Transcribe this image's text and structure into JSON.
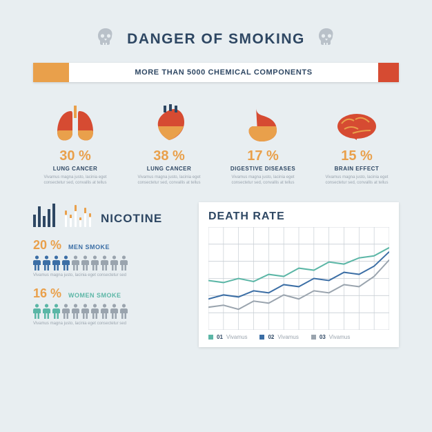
{
  "colors": {
    "bg": "#e8eef1",
    "title": "#2e4763",
    "skull": "#b9c1c9",
    "filter": "#e9a04b",
    "cig_tip": "#d64b32",
    "cig_text": "#2e4763",
    "accent_orange": "#e9a04b",
    "muted": "#9aa4ae",
    "organ_red": "#d64b32",
    "organ_yellow": "#e9a04b",
    "men": "#3b6ea5",
    "women": "#5bb6a6",
    "grid": "#c8ced4",
    "chart_bg": "#ffffff",
    "line1": "#5bb6a6",
    "line2": "#3b6ea5",
    "line3": "#9aa4ae"
  },
  "title": "DANGER OF SMOKING",
  "cig_text": "MORE THAN 5000 CHEMICAL COMPONENTS",
  "organs": [
    {
      "pct": "30 %",
      "label": "LUNG CANCER",
      "desc": "Vivamus magna justo, lacinia eget consectetur sed, convallis at tellus"
    },
    {
      "pct": "38 %",
      "label": "LUNG CANCER",
      "desc": "Vivamus magna justo, lacinia eget consectetur sed, convallis at tellus"
    },
    {
      "pct": "17 %",
      "label": "DIGESTIVE DISEASES",
      "desc": "Vivamus magna justo, lacinia eget consectetur sed, convallis at tellus"
    },
    {
      "pct": "15 %",
      "label": "BRAIN EFFECT",
      "desc": "Vivamus magna justo, lacinia eget consectetur sed, convallis at tellus"
    }
  ],
  "nicotine": {
    "title": "NICOTINE",
    "bars": [
      18,
      30,
      16,
      26,
      34
    ],
    "cigs": [
      24,
      18,
      32,
      14,
      28,
      20
    ],
    "men": {
      "pct": "20 %",
      "label": "MEN SMOKE",
      "active": 4,
      "total": 10,
      "desc": "Vivamus magna justo, lacinia eget consectetur sed"
    },
    "women": {
      "pct": "16 %",
      "label": "WOMEN SMOKE",
      "active": 3,
      "total": 10,
      "desc": "Vivamus magna justo, lacinia eget consectetur sed"
    }
  },
  "death": {
    "title": "DEATH RATE",
    "legend": [
      {
        "num": "01",
        "label": "Vivamus"
      },
      {
        "num": "02",
        "label": "Vivamus"
      },
      {
        "num": "03",
        "label": "Vivamus"
      }
    ],
    "series": {
      "x": [
        0,
        1,
        2,
        3,
        4,
        5,
        6,
        7,
        8,
        9,
        10,
        11,
        12
      ],
      "line1": [
        48,
        46,
        50,
        47,
        54,
        52,
        60,
        58,
        66,
        64,
        70,
        72,
        80
      ],
      "line2": [
        30,
        34,
        32,
        38,
        36,
        44,
        42,
        50,
        48,
        56,
        54,
        62,
        76
      ],
      "line3": [
        22,
        24,
        20,
        28,
        26,
        34,
        30,
        38,
        36,
        44,
        42,
        52,
        68
      ]
    },
    "ylim": [
      0,
      100
    ],
    "grid_rows": 6,
    "grid_cols": 12
  }
}
